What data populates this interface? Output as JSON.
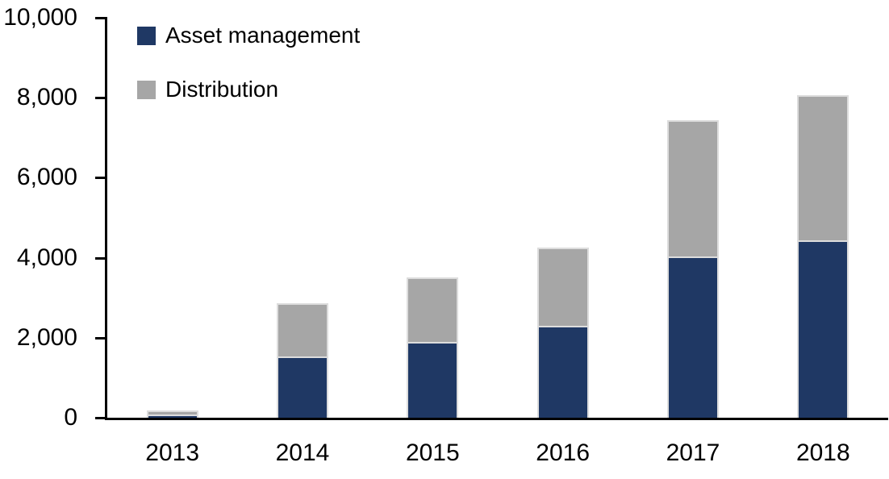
{
  "chart_data": {
    "type": "bar",
    "stacked": true,
    "categories": [
      "2013",
      "2014",
      "2015",
      "2016",
      "2017",
      "2018"
    ],
    "series": [
      {
        "name": "Asset management",
        "color": "#1F3864",
        "values": [
          80,
          1540,
          1900,
          2300,
          4040,
          4440
        ]
      },
      {
        "name": "Distribution",
        "color": "#A6A6A6",
        "values": [
          100,
          1330,
          1610,
          1960,
          3390,
          3620
        ]
      }
    ],
    "totals": [
      180,
      2870,
      3510,
      4260,
      7430,
      8060
    ],
    "ylim": [
      0,
      10000
    ],
    "ytick_step": 2000,
    "ytick_labels": [
      "0",
      "2,000",
      "4,000",
      "6,000",
      "8,000",
      "10,000"
    ],
    "xlabel": "",
    "ylabel": "",
    "grid": false,
    "legend_position": "top-left",
    "axis_color": "#000000",
    "bar_outline_color": "#DDDDDD"
  }
}
